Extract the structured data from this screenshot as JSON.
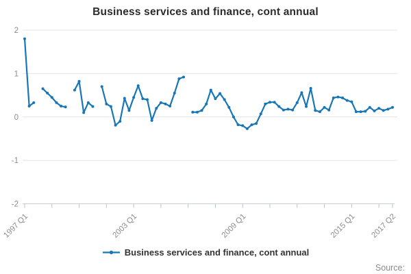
{
  "title": "Business services and finance, cont annual",
  "legend": {
    "label": "Business services and finance, cont annual"
  },
  "footer": {
    "source_label": "Source:"
  },
  "colors": {
    "series": "#1776b6",
    "grid": "#e4e4e4",
    "axis_line": "#c9ced6",
    "tick": "#aec4de",
    "tick_label": "#8c8c8c",
    "title_text": "#2b2b2b",
    "legend_text": "#333333",
    "source_text": "#8a8a8a"
  },
  "chart_data": {
    "type": "line",
    "title": "Business services and finance, cont annual",
    "x_start": "1997 Q1",
    "x_end": "2017 Q2",
    "frequency": "quarterly",
    "ylim": [
      -2,
      2
    ],
    "y_ticks": [
      2,
      1,
      0,
      -1,
      -2
    ],
    "grid": "horizontal",
    "legend_position": "bottom-center",
    "x_axis": {
      "minor_tick_every_quarters": 6,
      "labeled_ticks": [
        {
          "quarter_index": 0,
          "label": "1997 Q1"
        },
        {
          "quarter_index": 24,
          "label": "2003 Q1"
        },
        {
          "quarter_index": 48,
          "label": "2009 Q1"
        },
        {
          "quarter_index": 72,
          "label": "2015 Q1"
        },
        {
          "quarter_index": 81,
          "label": "2017 Q2"
        }
      ]
    },
    "series": [
      {
        "name": "Business services and finance, cont annual",
        "values": [
          1.8,
          0.25,
          0.33,
          null,
          0.65,
          0.55,
          0.45,
          0.33,
          0.25,
          0.23,
          null,
          0.62,
          0.82,
          0.1,
          0.33,
          0.24,
          null,
          0.7,
          0.3,
          0.24,
          -0.19,
          -0.1,
          0.43,
          0.15,
          0.45,
          0.72,
          0.42,
          0.4,
          -0.08,
          0.2,
          0.33,
          0.3,
          0.25,
          0.55,
          0.88,
          0.92,
          null,
          0.11,
          0.11,
          0.15,
          0.3,
          0.62,
          0.42,
          0.54,
          0.4,
          0.22,
          0.0,
          -0.18,
          -0.2,
          -0.27,
          -0.18,
          -0.15,
          0.07,
          0.3,
          0.34,
          0.34,
          0.24,
          0.16,
          0.18,
          0.16,
          0.33,
          0.56,
          0.24,
          0.66,
          0.15,
          0.12,
          0.22,
          0.16,
          0.44,
          0.46,
          0.44,
          0.38,
          0.35,
          0.12,
          0.12,
          0.13,
          0.22,
          0.14,
          0.2,
          0.15,
          0.18,
          0.22
        ]
      }
    ]
  }
}
